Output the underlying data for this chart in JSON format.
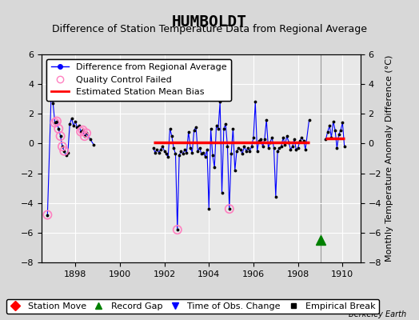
{
  "title": "HUMBOLDT",
  "subtitle": "Difference of Station Temperature Data from Regional Average",
  "ylabel_right": "Monthly Temperature Anomaly Difference (°C)",
  "credit": "Berkeley Earth",
  "xlim": [
    1896.5,
    1910.8
  ],
  "ylim": [
    -8,
    6
  ],
  "yticks": [
    -8,
    -6,
    -4,
    -2,
    0,
    2,
    4,
    6
  ],
  "xticks": [
    1898,
    1900,
    1902,
    1904,
    1906,
    1908,
    1910
  ],
  "bg_color": "#d8d8d8",
  "plot_bg_color": "#e8e8e8",
  "grid_color": "#ffffff",
  "line_data_x": [
    1896.75,
    1896.917,
    1897.0,
    1897.083,
    1897.167,
    1897.25,
    1897.333,
    1897.417,
    1897.5,
    1897.583,
    1897.667,
    1897.75,
    1897.833,
    1897.917,
    1898.0,
    1898.083,
    1898.167,
    1898.25,
    1898.333,
    1898.417,
    1898.5,
    1898.667,
    1898.833,
    1901.5,
    1901.583,
    1901.667,
    1901.75,
    1901.833,
    1901.917,
    1902.0,
    1902.083,
    1902.167,
    1902.25,
    1902.333,
    1902.417,
    1902.5,
    1902.583,
    1902.667,
    1902.75,
    1902.833,
    1902.917,
    1903.0,
    1903.083,
    1903.167,
    1903.25,
    1903.333,
    1903.417,
    1903.5,
    1903.583,
    1903.667,
    1903.75,
    1903.833,
    1903.917,
    1904.0,
    1904.083,
    1904.167,
    1904.25,
    1904.333,
    1904.417,
    1904.5,
    1904.583,
    1904.667,
    1904.75,
    1904.833,
    1904.917,
    1905.0,
    1905.083,
    1905.167,
    1905.25,
    1905.333,
    1905.417,
    1905.5,
    1905.583,
    1905.667,
    1905.75,
    1905.833,
    1905.917,
    1906.0,
    1906.083,
    1906.167,
    1906.25,
    1906.333,
    1906.417,
    1906.5,
    1906.583,
    1906.667,
    1906.75,
    1906.833,
    1906.917,
    1907.0,
    1907.083,
    1907.167,
    1907.25,
    1907.333,
    1907.417,
    1907.5,
    1907.583,
    1907.667,
    1907.75,
    1907.833,
    1907.917,
    1908.0,
    1908.083,
    1908.167,
    1908.25,
    1908.333,
    1908.5,
    1909.25,
    1909.333,
    1909.417,
    1909.5,
    1909.583,
    1909.667,
    1909.75,
    1909.833,
    1909.917,
    1910.0,
    1910.083
  ],
  "line_data_y": [
    -4.8,
    3.3,
    2.7,
    1.4,
    1.5,
    1.0,
    0.5,
    -0.2,
    -0.5,
    -0.8,
    -0.6,
    1.3,
    1.7,
    1.2,
    1.5,
    1.1,
    1.2,
    0.8,
    0.9,
    0.5,
    0.7,
    0.3,
    -0.1,
    -0.3,
    -0.6,
    -0.4,
    -0.6,
    -0.4,
    -0.2,
    -0.5,
    -0.7,
    -0.9,
    1.0,
    0.5,
    -0.3,
    -0.7,
    -5.8,
    -0.8,
    -0.5,
    -0.7,
    -0.4,
    -0.6,
    0.8,
    -0.3,
    -0.6,
    0.9,
    1.1,
    -0.5,
    -0.3,
    -0.7,
    -0.6,
    -0.9,
    -0.4,
    -4.4,
    1.0,
    -0.8,
    -1.6,
    1.2,
    1.0,
    2.8,
    -3.3,
    1.0,
    1.3,
    -0.2,
    -4.4,
    -0.7,
    1.0,
    -1.8,
    -0.5,
    -0.3,
    -0.4,
    -0.7,
    -0.2,
    -0.5,
    -0.3,
    -0.5,
    -0.2,
    0.4,
    2.8,
    -0.5,
    0.2,
    0.3,
    -0.2,
    0.3,
    1.6,
    -0.3,
    0.1,
    0.4,
    -0.3,
    -3.6,
    -0.5,
    -0.3,
    -0.2,
    0.4,
    -0.1,
    0.5,
    0.1,
    -0.4,
    -0.2,
    0.3,
    -0.4,
    -0.3,
    0.2,
    0.4,
    0.2,
    -0.4,
    1.6,
    0.3,
    0.8,
    1.2,
    0.4,
    1.5,
    0.9,
    -0.3,
    0.6,
    0.9,
    1.4,
    -0.2
  ],
  "qc_failed_x": [
    1896.75,
    1897.083,
    1897.167,
    1897.25,
    1897.333,
    1897.417,
    1897.5,
    1898.25,
    1898.333,
    1898.417,
    1898.5,
    1902.583,
    1904.917
  ],
  "qc_failed_y": [
    -4.8,
    1.4,
    1.5,
    1.0,
    0.5,
    -0.2,
    -0.5,
    0.8,
    0.9,
    0.5,
    0.7,
    -5.8,
    -4.4
  ],
  "bias_segments": [
    {
      "x": [
        1901.5,
        1908.5
      ],
      "y": [
        0.08,
        0.08
      ]
    },
    {
      "x": [
        1909.25,
        1910.083
      ],
      "y": [
        0.35,
        0.35
      ]
    }
  ],
  "record_gap_x": [
    1909.0
  ],
  "record_gap_y": [
    -6.5
  ],
  "vertical_line_x": 1909.0,
  "title_fontsize": 14,
  "subtitle_fontsize": 9,
  "tick_fontsize": 8,
  "legend_fontsize": 8,
  "credit_fontsize": 7
}
